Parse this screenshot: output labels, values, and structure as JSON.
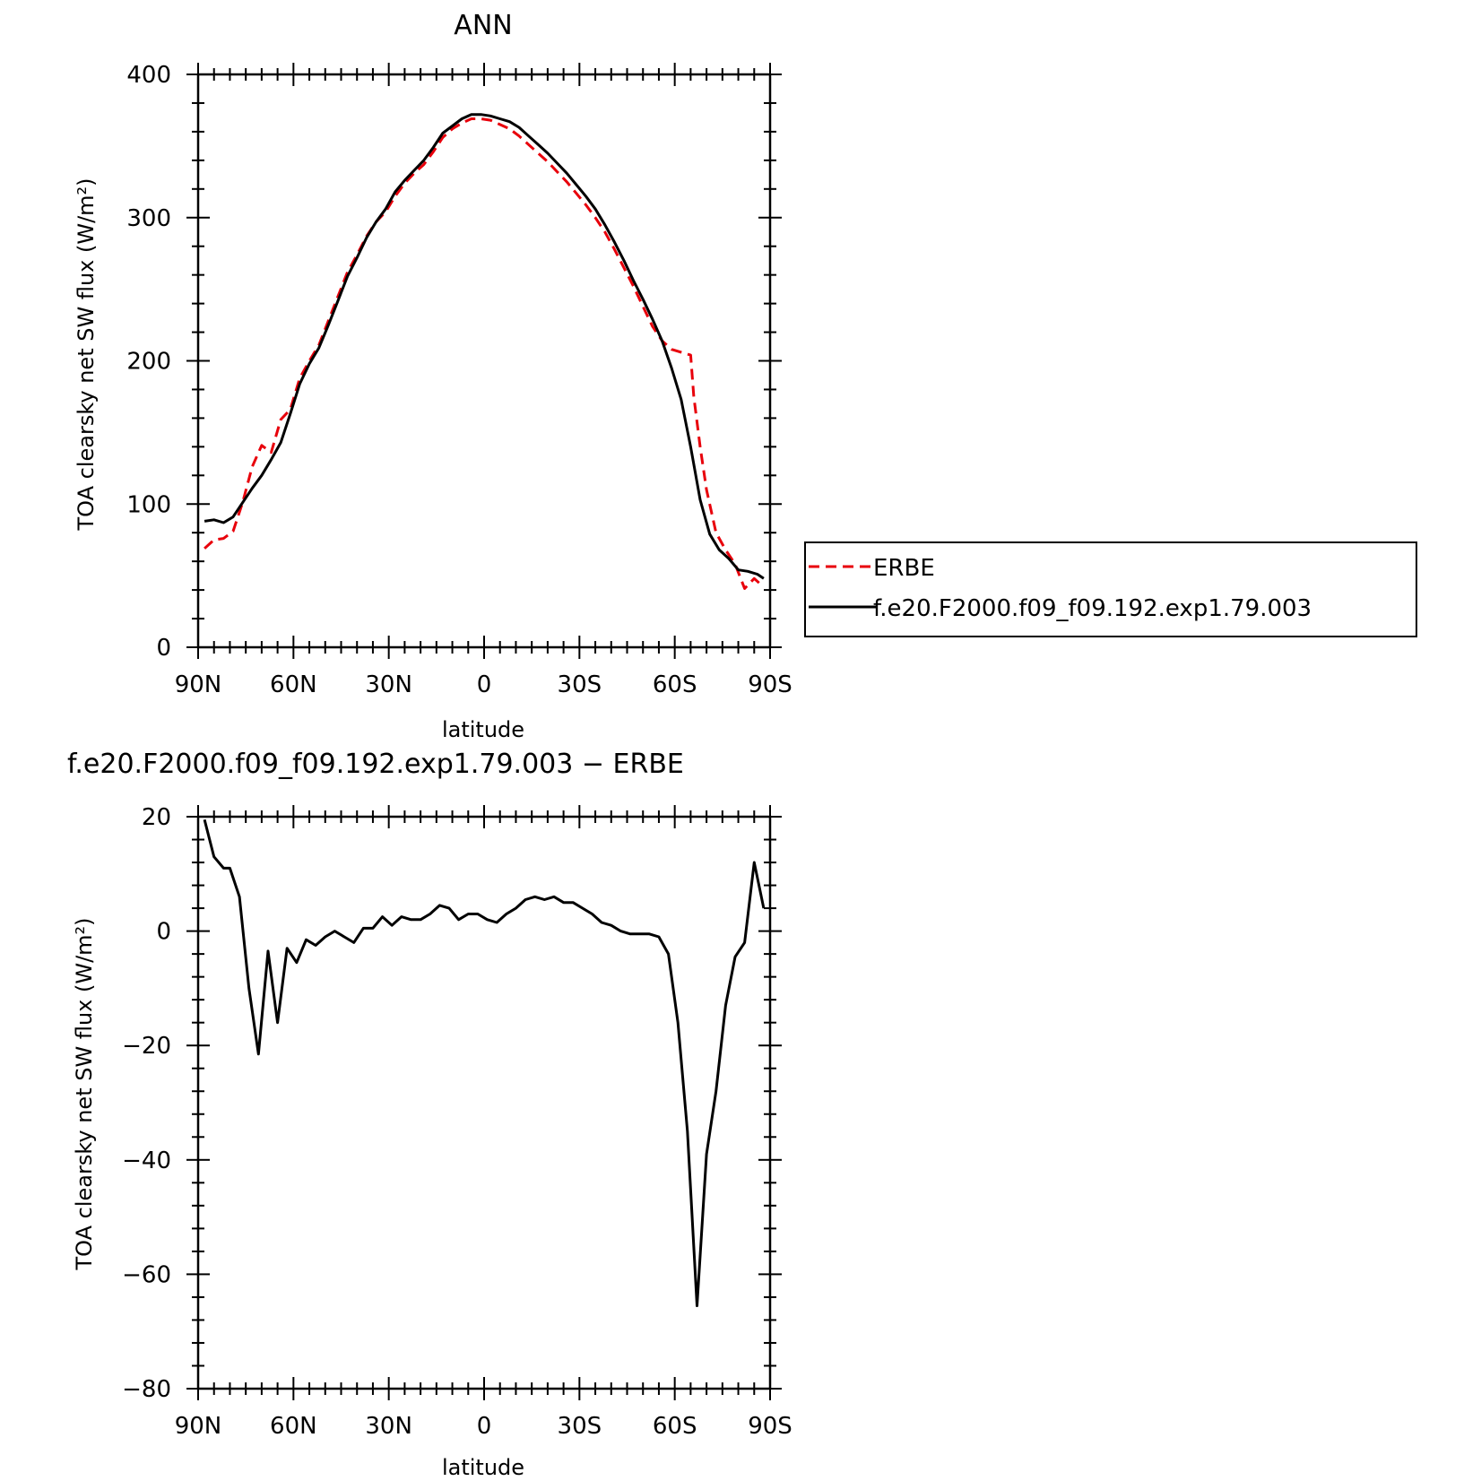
{
  "figure": {
    "title": "ANN",
    "diff_title": "f.e20.F2000.f09_f09.192.exp1.79.003 − ERBE",
    "colors": {
      "obs": "#e8000b",
      "model": "#000000",
      "frame": "#000000"
    }
  },
  "chart_data": [
    {
      "type": "line",
      "title": "ANN",
      "xlabel": "latitude",
      "ylabel": "TOA clearsky net SW flux (W/m²)",
      "xlim": [
        90,
        -90
      ],
      "ylim": [
        0,
        400
      ],
      "x_ticks": [
        90,
        60,
        30,
        0,
        -30,
        -60,
        -90
      ],
      "x_tick_labels": [
        "90N",
        "60N",
        "30N",
        "0",
        "30S",
        "60S",
        "90S"
      ],
      "y_ticks": [
        0,
        100,
        200,
        300,
        400
      ],
      "y_tick_labels": [
        "0",
        "100",
        "200",
        "300",
        "400"
      ],
      "legend": {
        "position": "right",
        "entries": [
          "ERBE",
          "f.e20.F2000.f09_f09.192.exp1.79.003"
        ]
      },
      "series": [
        {
          "name": "ERBE",
          "style": "dashed",
          "color": "#e8000b",
          "x": [
            88,
            85,
            82,
            79,
            76,
            73,
            70,
            67,
            64,
            61,
            58,
            55,
            52,
            49,
            46,
            43,
            40,
            37,
            34,
            31,
            28,
            25,
            22,
            19,
            16,
            13,
            10,
            7,
            4,
            1,
            -2,
            -5,
            -8,
            -11,
            -14,
            -17,
            -20,
            -23,
            -26,
            -29,
            -32,
            -35,
            -38,
            -41,
            -44,
            -47,
            -50,
            -53,
            -56,
            -59,
            -62,
            -65,
            -66,
            -68,
            -70,
            -73,
            -76,
            -79,
            -82,
            -85,
            -88
          ],
          "y": [
            69,
            75,
            76,
            81,
            101,
            126,
            141,
            136,
            159,
            166,
            188,
            200,
            211,
            228,
            245,
            262,
            274,
            287,
            297,
            304,
            315,
            324,
            331,
            337,
            346,
            356,
            362,
            366,
            369,
            369,
            368,
            365,
            362,
            357,
            351,
            345,
            339,
            332,
            325,
            317,
            309,
            300,
            290,
            278,
            265,
            252,
            238,
            224,
            214,
            208,
            206,
            204,
            175,
            140,
            110,
            80,
            68,
            58,
            41,
            48,
            42
          ]
        },
        {
          "name": "f.e20.F2000.f09_f09.192.exp1.79.003",
          "style": "solid",
          "color": "#000000",
          "x": [
            88,
            85,
            82,
            79,
            76,
            73,
            70,
            67,
            64,
            61,
            58,
            55,
            52,
            49,
            46,
            43,
            40,
            37,
            34,
            31,
            28,
            25,
            22,
            19,
            16,
            13,
            10,
            7,
            4,
            1,
            -2,
            -5,
            -8,
            -11,
            -14,
            -17,
            -20,
            -23,
            -26,
            -29,
            -32,
            -35,
            -38,
            -41,
            -44,
            -47,
            -50,
            -53,
            -56,
            -59,
            -62,
            -65,
            -68,
            -71,
            -74,
            -77,
            -80,
            -83,
            -86,
            -88
          ],
          "y": [
            88,
            89,
            87,
            91,
            101,
            111,
            120,
            131,
            143,
            163,
            184,
            198,
            209,
            225,
            242,
            259,
            272,
            286,
            297,
            306,
            318,
            326,
            333,
            340,
            349,
            359,
            364,
            369,
            372,
            372,
            371,
            369,
            367,
            363,
            357,
            351,
            345,
            338,
            331,
            323,
            315,
            306,
            295,
            283,
            270,
            256,
            243,
            229,
            214,
            195,
            173,
            140,
            103,
            79,
            68,
            62,
            54,
            53,
            51,
            48
          ]
        }
      ]
    },
    {
      "type": "line",
      "title": "f.e20.F2000.f09_f09.192.exp1.79.003 − ERBE",
      "xlabel": "latitude",
      "ylabel": "TOA clearsky net SW flux (W/m²)",
      "xlim": [
        90,
        -90
      ],
      "ylim": [
        -80,
        20
      ],
      "x_ticks": [
        90,
        60,
        30,
        0,
        -30,
        -60,
        -90
      ],
      "x_tick_labels": [
        "90N",
        "60N",
        "30N",
        "0",
        "30S",
        "60S",
        "90S"
      ],
      "y_ticks": [
        20,
        0,
        -20,
        -40,
        -60,
        -80
      ],
      "y_tick_labels": [
        "20",
        "0",
        "−20",
        "−40",
        "−60",
        "−80"
      ],
      "series": [
        {
          "name": "",
          "style": "solid",
          "color": "#000000",
          "x": [
            88,
            85,
            82,
            80,
            77,
            74,
            71,
            68,
            65,
            62,
            59,
            56,
            53,
            50,
            47,
            44,
            41,
            38,
            35,
            32,
            29,
            26,
            23,
            20,
            17,
            14,
            11,
            8,
            5,
            2,
            -1,
            -4,
            -7,
            -10,
            -13,
            -16,
            -19,
            -22,
            -25,
            -28,
            -31,
            -34,
            -37,
            -40,
            -43,
            -46,
            -49,
            -52,
            -55,
            -58,
            -61,
            -64,
            -67,
            -70,
            -73,
            -76,
            -79,
            -82,
            -85,
            -88
          ],
          "y": [
            19.5,
            13,
            11,
            11,
            6,
            -10,
            -21.5,
            -3.5,
            -16,
            -3,
            -5.5,
            -1.5,
            -2.5,
            -1,
            0,
            -1,
            -2,
            0.5,
            0.5,
            2.5,
            1,
            2.5,
            2,
            2,
            3,
            4.5,
            4,
            2,
            3,
            3,
            2,
            1.5,
            3,
            4,
            5.5,
            6,
            5.5,
            6,
            5,
            5,
            4,
            3,
            1.5,
            1,
            0,
            -0.5,
            -0.5,
            -0.5,
            -1,
            -4,
            -16,
            -35,
            -65.5,
            -39,
            -28,
            -13,
            -4.5,
            -2,
            12,
            4
          ]
        }
      ]
    }
  ]
}
